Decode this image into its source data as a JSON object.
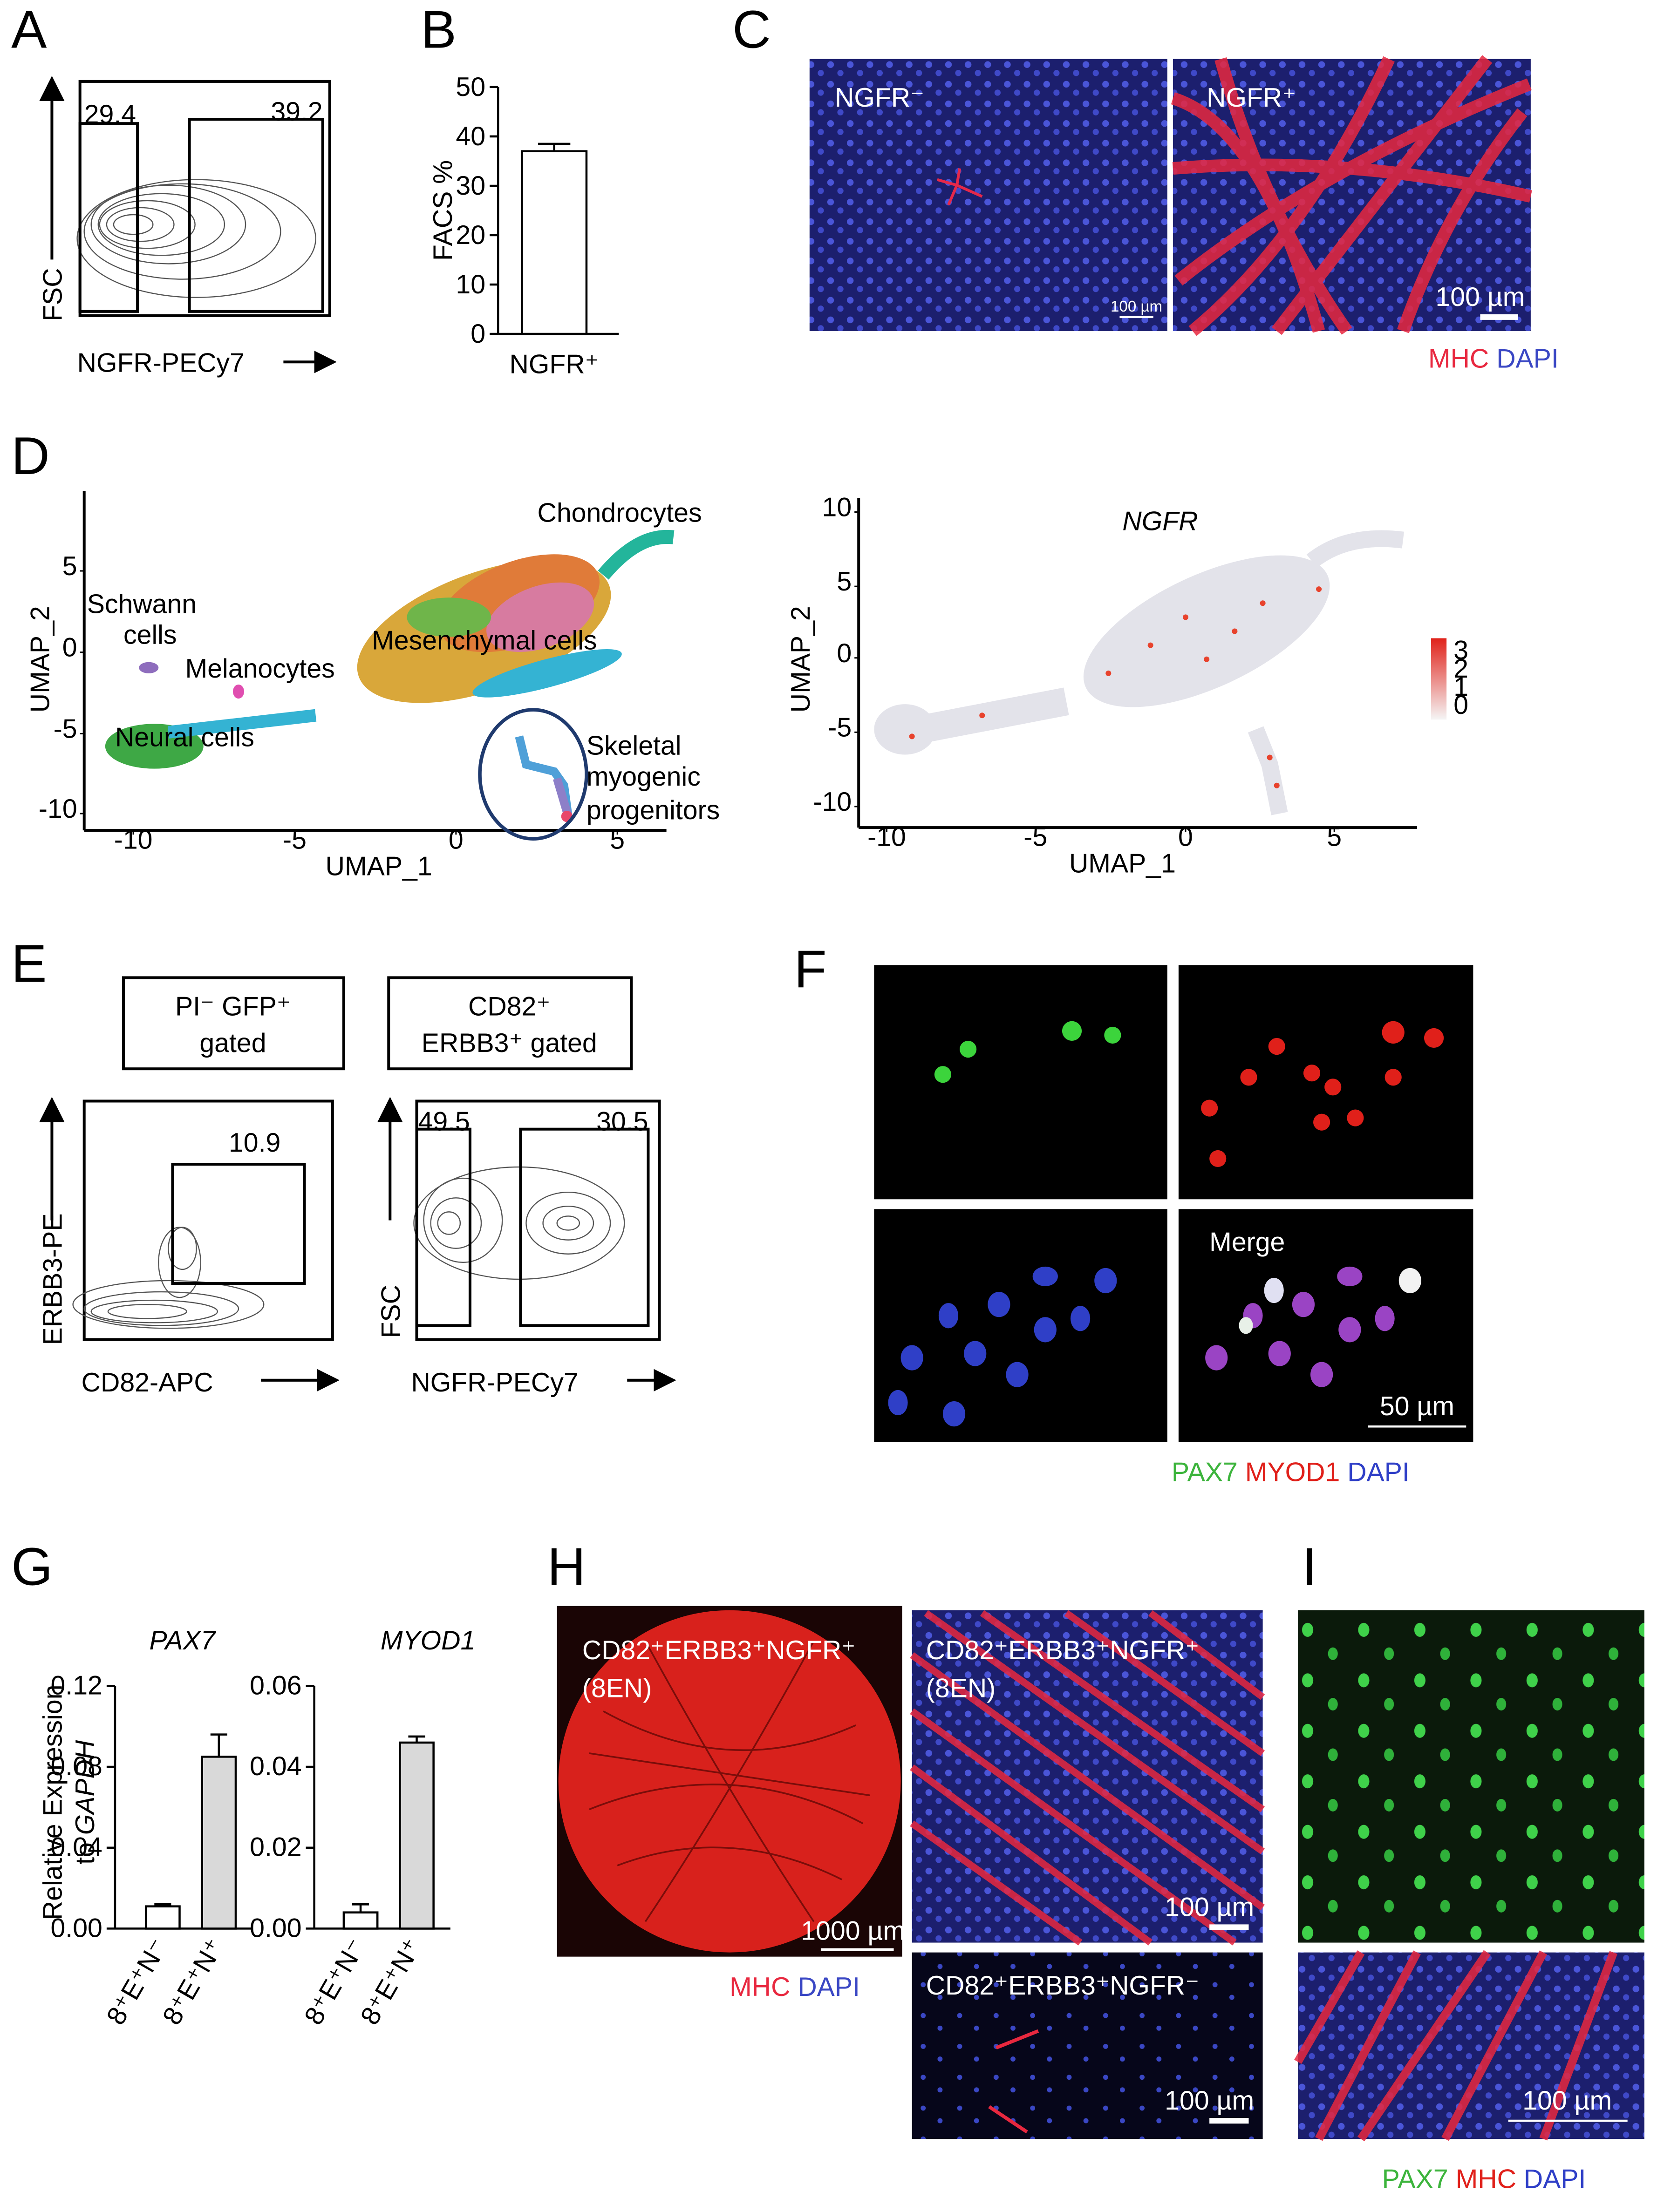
{
  "panel_labels": {
    "a": "A",
    "b": "B",
    "c": "C",
    "d": "D",
    "e": "E",
    "f": "F",
    "g": "G",
    "h": "H",
    "i": "I"
  },
  "panel_a": {
    "y_label": "FSC",
    "x_label": "NGFR-PECy7",
    "gate_left": 29.4,
    "gate_right": 39.2
  },
  "panel_c": {
    "left_label": "NGFR⁻",
    "right_label": "NGFR⁺",
    "scale_small": "100 µm",
    "scale": "100 µm",
    "legend": [
      "MHC",
      "DAPI"
    ]
  },
  "panel_d": {
    "left": {
      "clusters": {
        "chondrocytes": "Chondrocytes",
        "schwann": [
          "Schwann",
          "cells"
        ],
        "melanocytes": "Melanocytes",
        "mesenchymal": "Mesenchymal cells",
        "neural": "Neural cells",
        "myogenic": [
          "Skeletal",
          "myogenic",
          "progenitors"
        ]
      },
      "x_label": "UMAP_1",
      "y_label": "UMAP_2",
      "x_ticks": [
        -10,
        -5,
        0,
        5
      ],
      "y_ticks": [
        5,
        0,
        -5,
        -10
      ]
    },
    "right": {
      "title": "NGFR",
      "x_label": "UMAP_1",
      "y_label": "UMAP_2",
      "x_ticks": [
        -10,
        -5,
        0,
        5
      ],
      "y_ticks": [
        10,
        5,
        0,
        -5,
        -10
      ],
      "colorbar_ticks": [
        3,
        2,
        1,
        0
      ]
    }
  },
  "panel_e": {
    "left": {
      "header": [
        "PI⁻ GFP⁺",
        "gated"
      ],
      "y_label": "ERBB3-PE",
      "x_label": "CD82-APC",
      "gate": 10.9
    },
    "right": {
      "header": [
        "CD82⁺",
        "ERBB3⁺ gated"
      ],
      "y_label": "FSC",
      "x_label": "NGFR-PECy7",
      "gate_left": 49.5,
      "gate_right": 30.5
    }
  },
  "panel_f": {
    "labels": [
      "PAX7",
      "MYOD1",
      "DAPI",
      "Merge"
    ],
    "scale": "50 µm",
    "legend": [
      "PAX7",
      "MYOD1",
      "DAPI"
    ]
  },
  "panel_g": {
    "y_label_line1": "Relative Expression",
    "y_label_line2": [
      "to",
      "GAPDH"
    ]
  },
  "panel_h": {
    "round_label": [
      "CD82⁺ERBB3⁺NGFR⁺",
      "(8EN)"
    ],
    "round_scale": "1000 µm",
    "top_label": [
      "CD82⁺ERBB3⁺NGFR⁺",
      "(8EN)"
    ],
    "top_scale": "100 µm",
    "bottom_label": "CD82⁺ERBB3⁺NGFR⁻",
    "bottom_scale": "100 µm",
    "legend": [
      "MHC",
      "DAPI"
    ]
  },
  "panel_i": {
    "scale": "100 µm",
    "legend": [
      "PAX7",
      "MHC",
      "DAPI"
    ]
  },
  "chart_data": [
    {
      "type": "bar",
      "y_label": "FACS %",
      "categories": [
        "NGFR⁺"
      ],
      "values": [
        37
      ],
      "errors": [
        1.5
      ],
      "colors": [
        "#ffffff"
      ],
      "ylim": [
        0,
        50
      ],
      "yticks": [
        0,
        10,
        20,
        30,
        40,
        50
      ]
    },
    {
      "type": "bar",
      "title": "PAX7",
      "categories": [
        "8⁺E⁺N⁻",
        "8⁺E⁺N⁺"
      ],
      "values": [
        0.011,
        0.085
      ],
      "errors": [
        0.001,
        0.011
      ],
      "colors": [
        "#ffffff",
        "#d9d9d9"
      ],
      "ylim": [
        0,
        0.12
      ],
      "yticks": [
        {
          "value": 0,
          "label": "0.00"
        },
        {
          "value": 0.04,
          "label": "0.04"
        },
        {
          "value": 0.08,
          "label": "0.08"
        },
        {
          "value": 0.12,
          "label": "0.12"
        }
      ]
    },
    {
      "type": "bar",
      "title": "MYOD1",
      "categories": [
        "8⁺E⁺N⁻",
        "8⁺E⁺N⁺"
      ],
      "values": [
        0.004,
        0.046
      ],
      "errors": [
        0.002,
        0.0015
      ],
      "colors": [
        "#ffffff",
        "#d9d9d9"
      ],
      "ylim": [
        0,
        0.06
      ],
      "yticks": [
        {
          "value": 0,
          "label": "0.00"
        },
        {
          "value": 0.02,
          "label": "0.02"
        },
        {
          "value": 0.04,
          "label": "0.04"
        },
        {
          "value": 0.06,
          "label": "0.06"
        }
      ]
    }
  ]
}
